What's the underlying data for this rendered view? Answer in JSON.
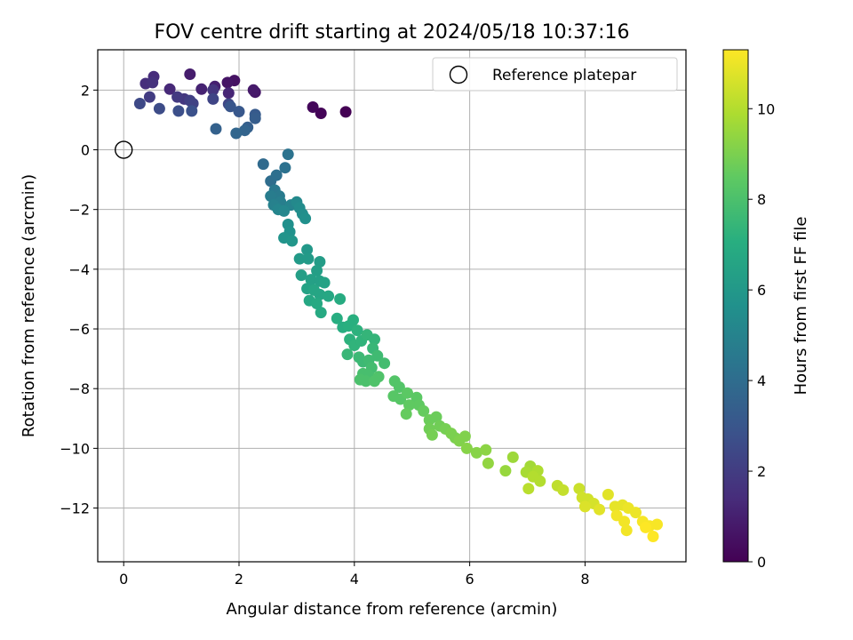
{
  "chart_data": {
    "type": "scatter",
    "title": "FOV centre drift starting at 2024/05/18 10:37:16",
    "xlabel": "Angular distance from reference (arcmin)",
    "ylabel": "Rotation from reference (arcmin)",
    "xlim": [
      -0.45,
      9.75
    ],
    "ylim": [
      -13.8,
      3.35
    ],
    "xticks": [
      0,
      2,
      4,
      6,
      8
    ],
    "yticks": [
      2,
      0,
      -2,
      -4,
      -6,
      -8,
      -10,
      -12
    ],
    "xtick_labels": [
      "0",
      "2",
      "4",
      "6",
      "8"
    ],
    "ytick_labels": [
      "2",
      "0",
      "−2",
      "−4",
      "−6",
      "−8",
      "−10",
      "−12"
    ],
    "grid": true,
    "legend": {
      "placement": "top-right",
      "entries": [
        {
          "label": "Reference platepar",
          "marker": "open-circle"
        }
      ]
    },
    "reference_point": {
      "x": 0,
      "y": 0
    },
    "colorbar": {
      "label": "Hours from first FF file",
      "colormap": "viridis",
      "range": [
        0,
        11.3
      ],
      "ticks": [
        0,
        2,
        4,
        6,
        8,
        10
      ],
      "tick_labels": [
        "0",
        "2",
        "4",
        "6",
        "8",
        "10"
      ]
    },
    "series": [
      {
        "c_label": "hours",
        "points": [
          [
            3.85,
            1.27,
            0.0
          ],
          [
            3.42,
            1.22,
            0.1
          ],
          [
            3.28,
            1.43,
            0.2
          ],
          [
            1.92,
            2.32,
            0.5
          ],
          [
            1.8,
            2.25,
            0.6
          ],
          [
            2.28,
            1.93,
            0.7
          ],
          [
            2.25,
            2.0,
            0.8
          ],
          [
            1.15,
            2.53,
            0.9
          ],
          [
            1.58,
            2.12,
            1.0
          ],
          [
            1.35,
            2.03,
            1.1
          ],
          [
            1.82,
            1.9,
            1.2
          ],
          [
            0.8,
            2.03,
            1.3
          ],
          [
            0.52,
            2.45,
            1.4
          ],
          [
            0.38,
            2.22,
            1.5
          ],
          [
            0.5,
            2.25,
            1.6
          ],
          [
            1.55,
            2.0,
            1.7
          ],
          [
            1.05,
            1.7,
            1.8
          ],
          [
            0.93,
            1.77,
            1.9
          ],
          [
            0.45,
            1.77,
            2.0
          ],
          [
            1.15,
            1.65,
            2.1
          ],
          [
            1.2,
            1.55,
            2.2
          ],
          [
            1.55,
            1.7,
            2.3
          ],
          [
            1.82,
            1.53,
            2.4
          ],
          [
            0.28,
            1.55,
            2.5
          ],
          [
            0.62,
            1.38,
            2.6
          ],
          [
            0.95,
            1.3,
            2.7
          ],
          [
            1.18,
            1.3,
            2.8
          ],
          [
            1.85,
            1.45,
            3.0
          ],
          [
            2.0,
            1.28,
            3.1
          ],
          [
            2.28,
            1.18,
            3.2
          ],
          [
            2.28,
            1.05,
            3.3
          ],
          [
            2.15,
            0.75,
            3.4
          ],
          [
            1.6,
            0.7,
            3.5
          ],
          [
            2.1,
            0.65,
            3.6
          ],
          [
            1.95,
            0.55,
            3.7
          ],
          [
            2.42,
            -0.48,
            3.9
          ],
          [
            2.55,
            -1.05,
            4.0
          ],
          [
            2.65,
            -0.85,
            4.1
          ],
          [
            2.8,
            -0.6,
            4.2
          ],
          [
            2.85,
            -0.15,
            4.3
          ],
          [
            2.62,
            -1.35,
            4.5
          ],
          [
            2.7,
            -1.55,
            4.6
          ],
          [
            2.55,
            -1.55,
            4.7
          ],
          [
            2.72,
            -1.75,
            4.8
          ],
          [
            2.6,
            -1.85,
            4.9
          ],
          [
            2.9,
            -1.85,
            5.0
          ],
          [
            2.68,
            -2.0,
            5.1
          ],
          [
            2.78,
            -2.05,
            5.2
          ],
          [
            3.0,
            -1.75,
            5.3
          ],
          [
            3.05,
            -1.95,
            5.4
          ],
          [
            3.1,
            -2.15,
            5.5
          ],
          [
            3.15,
            -2.3,
            5.6
          ],
          [
            2.85,
            -2.5,
            5.6
          ],
          [
            2.88,
            -2.75,
            5.7
          ],
          [
            2.78,
            -2.95,
            5.8
          ],
          [
            2.92,
            -3.05,
            5.9
          ],
          [
            3.18,
            -3.35,
            6.0
          ],
          [
            3.05,
            -3.65,
            6.1
          ],
          [
            3.2,
            -3.65,
            6.1
          ],
          [
            3.4,
            -3.75,
            6.2
          ],
          [
            3.08,
            -4.2,
            6.3
          ],
          [
            3.35,
            -4.05,
            6.3
          ],
          [
            3.25,
            -4.35,
            6.4
          ],
          [
            3.4,
            -4.4,
            6.4
          ],
          [
            3.48,
            -4.45,
            6.5
          ],
          [
            3.18,
            -4.65,
            6.5
          ],
          [
            3.3,
            -4.7,
            6.6
          ],
          [
            3.4,
            -4.85,
            6.6
          ],
          [
            3.55,
            -4.9,
            6.7
          ],
          [
            3.22,
            -5.05,
            6.7
          ],
          [
            3.35,
            -5.15,
            6.8
          ],
          [
            3.42,
            -5.45,
            6.8
          ],
          [
            3.75,
            -5.0,
            6.9
          ],
          [
            3.7,
            -5.65,
            7.0
          ],
          [
            3.8,
            -5.95,
            7.0
          ],
          [
            3.9,
            -5.9,
            7.1
          ],
          [
            3.98,
            -5.7,
            7.1
          ],
          [
            4.05,
            -6.05,
            7.2
          ],
          [
            3.92,
            -6.35,
            7.2
          ],
          [
            4.0,
            -6.55,
            7.3
          ],
          [
            4.12,
            -6.4,
            7.3
          ],
          [
            4.22,
            -6.2,
            7.4
          ],
          [
            4.35,
            -6.35,
            7.4
          ],
          [
            4.32,
            -6.65,
            7.5
          ],
          [
            3.88,
            -6.85,
            7.5
          ],
          [
            4.08,
            -6.95,
            7.6
          ],
          [
            4.15,
            -7.1,
            7.6
          ],
          [
            4.25,
            -7.05,
            7.7
          ],
          [
            4.4,
            -6.9,
            7.7
          ],
          [
            4.52,
            -7.15,
            7.8
          ],
          [
            4.3,
            -7.3,
            7.8
          ],
          [
            4.15,
            -7.5,
            7.9
          ],
          [
            4.25,
            -7.55,
            7.9
          ],
          [
            4.1,
            -7.7,
            8.0
          ],
          [
            4.2,
            -7.75,
            8.0
          ],
          [
            4.42,
            -7.6,
            8.1
          ],
          [
            4.35,
            -7.75,
            8.1
          ],
          [
            4.7,
            -7.75,
            8.2
          ],
          [
            4.78,
            -7.95,
            8.2
          ],
          [
            4.68,
            -8.25,
            8.3
          ],
          [
            4.8,
            -8.35,
            8.3
          ],
          [
            4.92,
            -8.15,
            8.4
          ],
          [
            5.08,
            -8.3,
            8.4
          ],
          [
            5.12,
            -8.55,
            8.5
          ],
          [
            4.95,
            -8.55,
            8.5
          ],
          [
            4.9,
            -8.85,
            8.6
          ],
          [
            5.2,
            -8.75,
            8.6
          ],
          [
            5.3,
            -9.05,
            8.7
          ],
          [
            5.42,
            -8.95,
            8.7
          ],
          [
            5.48,
            -9.25,
            8.8
          ],
          [
            5.3,
            -9.35,
            8.8
          ],
          [
            5.35,
            -9.55,
            8.9
          ],
          [
            5.58,
            -9.35,
            8.9
          ],
          [
            5.68,
            -9.5,
            9.0
          ],
          [
            5.75,
            -9.65,
            9.0
          ],
          [
            5.92,
            -9.6,
            9.1
          ],
          [
            5.82,
            -9.75,
            9.1
          ],
          [
            5.95,
            -10.0,
            9.2
          ],
          [
            6.12,
            -10.15,
            9.2
          ],
          [
            6.28,
            -10.05,
            9.3
          ],
          [
            6.32,
            -10.5,
            9.4
          ],
          [
            6.62,
            -10.75,
            9.5
          ],
          [
            6.75,
            -10.3,
            9.6
          ],
          [
            7.05,
            -10.6,
            9.7
          ],
          [
            6.98,
            -10.8,
            9.8
          ],
          [
            7.18,
            -10.75,
            9.9
          ],
          [
            7.1,
            -10.95,
            10.0
          ],
          [
            7.22,
            -11.1,
            10.0
          ],
          [
            7.02,
            -11.35,
            10.1
          ],
          [
            7.52,
            -11.25,
            10.2
          ],
          [
            7.62,
            -11.4,
            10.3
          ],
          [
            7.9,
            -11.35,
            10.4
          ],
          [
            7.95,
            -11.65,
            10.5
          ],
          [
            8.05,
            -11.7,
            10.5
          ],
          [
            8.15,
            -11.85,
            10.6
          ],
          [
            8.0,
            -11.95,
            10.7
          ],
          [
            8.4,
            -11.55,
            10.8
          ],
          [
            8.25,
            -12.05,
            10.8
          ],
          [
            8.52,
            -11.95,
            10.9
          ],
          [
            8.65,
            -11.9,
            10.9
          ],
          [
            8.75,
            -12.0,
            11.0
          ],
          [
            8.88,
            -12.15,
            11.0
          ],
          [
            8.55,
            -12.25,
            11.1
          ],
          [
            8.68,
            -12.45,
            11.1
          ],
          [
            8.72,
            -12.75,
            11.1
          ],
          [
            9.0,
            -12.45,
            11.2
          ],
          [
            9.12,
            -12.6,
            11.2
          ],
          [
            9.25,
            -12.55,
            11.2
          ],
          [
            9.18,
            -12.95,
            11.3
          ],
          [
            9.05,
            -12.65,
            11.3
          ]
        ]
      }
    ]
  }
}
